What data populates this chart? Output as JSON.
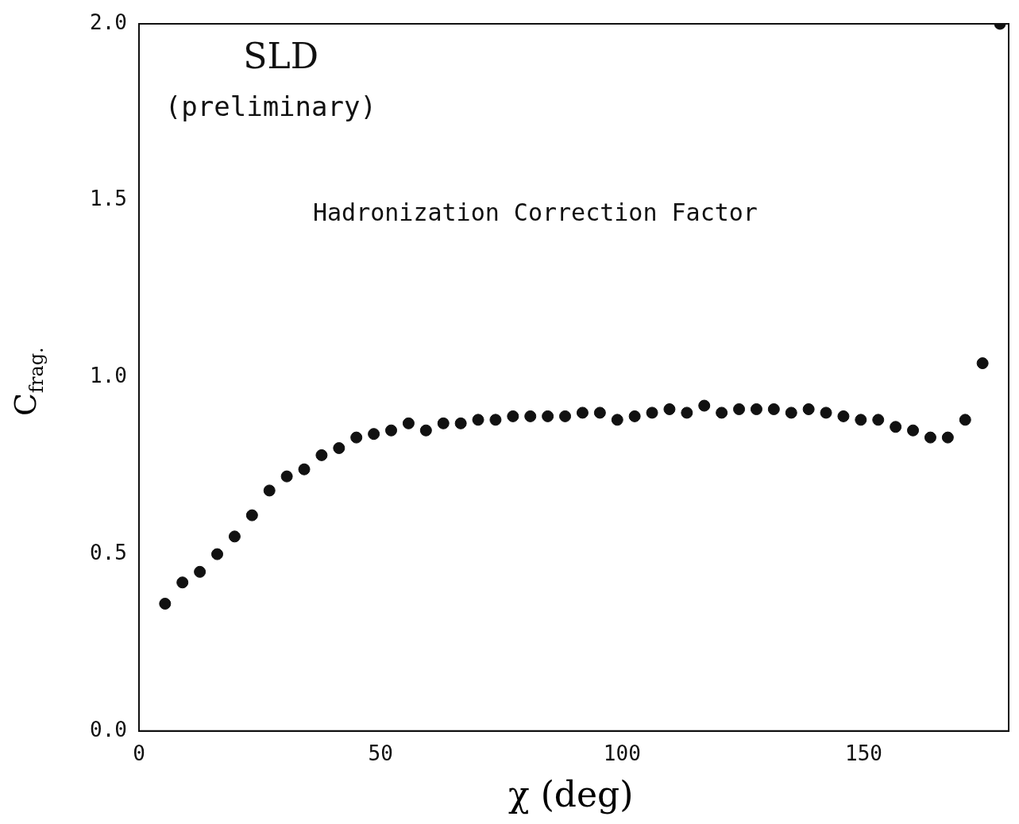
{
  "chart_data": {
    "type": "scatter",
    "xlabel": "χ (deg)",
    "ylabel": "C$_{frag.}$",
    "annotations": [
      "SLD",
      "(preliminary)",
      "Hadronization Correction Factor"
    ],
    "x": [
      5.4,
      9.0,
      12.6,
      16.2,
      19.8,
      23.4,
      27.0,
      30.6,
      34.2,
      37.8,
      41.4,
      45.0,
      48.6,
      52.2,
      55.8,
      59.4,
      63.0,
      66.6,
      70.2,
      73.8,
      77.4,
      81.0,
      84.6,
      88.2,
      91.8,
      95.4,
      99.0,
      102.6,
      106.2,
      109.8,
      113.4,
      117.0,
      120.6,
      124.2,
      127.8,
      131.4,
      135.0,
      138.6,
      142.2,
      145.8,
      149.4,
      153.0,
      156.6,
      160.2,
      163.8,
      167.4,
      171.0,
      174.6,
      178.2
    ],
    "values": [
      0.36,
      0.42,
      0.45,
      0.5,
      0.55,
      0.61,
      0.68,
      0.72,
      0.74,
      0.78,
      0.8,
      0.83,
      0.84,
      0.85,
      0.87,
      0.85,
      0.87,
      0.87,
      0.88,
      0.88,
      0.89,
      0.89,
      0.89,
      0.89,
      0.9,
      0.9,
      0.88,
      0.89,
      0.9,
      0.91,
      0.9,
      0.92,
      0.9,
      0.91,
      0.91,
      0.91,
      0.9,
      0.91,
      0.9,
      0.89,
      0.88,
      0.88,
      0.86,
      0.85,
      0.83,
      0.83,
      0.88,
      1.04,
      2.0
    ],
    "color": "#111111",
    "marker": "circle",
    "xlim": [
      0,
      180
    ],
    "xticks": [
      0,
      50,
      100,
      150
    ],
    "ylim": [
      0,
      2
    ],
    "yticks": [
      {
        "value": 0,
        "label": "0.0"
      },
      {
        "value": 0.5,
        "label": "0.5"
      },
      {
        "value": 1,
        "label": "1.0"
      },
      {
        "value": 1.5,
        "label": "1.5"
      },
      {
        "value": 2,
        "label": "2.0"
      }
    ],
    "grid": false,
    "legend": false
  }
}
